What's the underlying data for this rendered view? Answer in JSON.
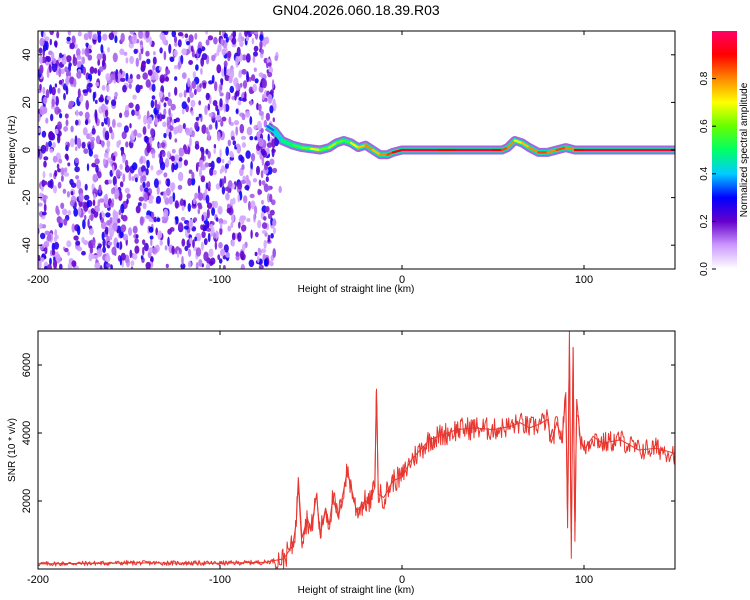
{
  "title": "GN04.2026.060.18.39.R03",
  "chart_data": [
    {
      "type": "heatmap",
      "name": "spectrogram",
      "xlabel": "Height of straight line (km)",
      "ylabel": "Frequency (Hz)",
      "xlim": [
        -200,
        150
      ],
      "ylim": [
        -50,
        50
      ],
      "xticks": [
        -200,
        -100,
        0,
        100
      ],
      "xtick_labels": [
        "-200",
        "-100",
        "0",
        "100"
      ],
      "yticks": [
        -40,
        -20,
        0,
        20,
        40
      ],
      "ytick_labels": [
        "-40",
        "-20",
        "0",
        "20",
        "40"
      ],
      "colorbar": {
        "label": "Normalized spectral amplitude",
        "range": [
          0,
          1
        ],
        "ticks": [
          0.0,
          0.2,
          0.4,
          0.6,
          0.8
        ],
        "tick_labels": [
          "0.0",
          "0.2",
          "0.4",
          "0.6",
          "0.8"
        ],
        "colors": [
          "#ffffff",
          "#cc99ff",
          "#6600cc",
          "#0000ff",
          "#00ccff",
          "#00ff66",
          "#66ff00",
          "#ffff00",
          "#ff8800",
          "#ff0000",
          "#ff0066"
        ]
      },
      "noise_region_x": [
        -200,
        -70
      ],
      "signal_track": {
        "x": [
          -74,
          -70,
          -66,
          -60,
          -55,
          -50,
          -45,
          -40,
          -36,
          -32,
          -28,
          -24,
          -20,
          -16,
          -12,
          -8,
          -5,
          0,
          10,
          20,
          30,
          40,
          50,
          55,
          58,
          62,
          66,
          70,
          75,
          80,
          85,
          90,
          95,
          100,
          120,
          150
        ],
        "freq": [
          10,
          8,
          4,
          2,
          1,
          0.5,
          0,
          1,
          3,
          4,
          3,
          1,
          2,
          0,
          -2,
          -2,
          -1,
          0,
          0,
          0,
          0,
          0,
          0,
          0,
          1,
          4,
          3,
          1,
          -1,
          -1,
          0,
          1,
          0,
          0,
          0,
          0
        ],
        "amplitude": [
          0.35,
          0.4,
          0.5,
          0.55,
          0.6,
          0.7,
          0.6,
          0.65,
          0.6,
          0.55,
          0.7,
          0.75,
          0.8,
          0.75,
          0.8,
          0.85,
          0.9,
          0.95,
          0.95,
          0.9,
          0.95,
          0.95,
          0.9,
          0.85,
          0.8,
          0.7,
          0.75,
          0.8,
          0.85,
          0.8,
          0.85,
          0.8,
          0.9,
          0.95,
          0.95,
          0.95
        ]
      }
    },
    {
      "type": "line",
      "name": "snr",
      "xlabel": "Height of straight line (km)",
      "ylabel": "SNR (10 * v/v)",
      "xlim": [
        -200,
        150
      ],
      "ylim": [
        0,
        7000
      ],
      "xticks": [
        -200,
        -100,
        0,
        100
      ],
      "xtick_labels": [
        "-200",
        "-100",
        "0",
        "100"
      ],
      "yticks": [
        2000,
        4000,
        6000
      ],
      "ytick_labels": [
        "2000",
        "4000",
        "6000"
      ],
      "color": "#e8362f",
      "series": [
        {
          "name": "SNR",
          "x": [
            -200,
            -150,
            -100,
            -75,
            -65,
            -60,
            -58,
            -57,
            -55,
            -52,
            -50,
            -47,
            -45,
            -42,
            -40,
            -38,
            -35,
            -30,
            -25,
            -20,
            -18,
            -15,
            -14,
            -13,
            -10,
            -5,
            0,
            5,
            10,
            15,
            20,
            25,
            30,
            40,
            50,
            60,
            65,
            70,
            75,
            80,
            82,
            85,
            88,
            90,
            91,
            92,
            93,
            94,
            95,
            96,
            98,
            100,
            105,
            110,
            120,
            130,
            140,
            150
          ],
          "y": [
            150,
            180,
            170,
            200,
            300,
            700,
            1400,
            2700,
            900,
            1500,
            1100,
            2200,
            1000,
            1800,
            1300,
            2100,
            1500,
            2900,
            1700,
            2000,
            1900,
            2400,
            5300,
            2200,
            2100,
            2600,
            2700,
            3200,
            3500,
            3800,
            3900,
            4000,
            4100,
            4150,
            4100,
            4200,
            4300,
            4150,
            4250,
            4400,
            3700,
            4300,
            3800,
            5200,
            1200,
            7000,
            300,
            6500,
            800,
            5000,
            3800,
            3500,
            3900,
            3700,
            3800,
            3500,
            3550,
            3400
          ]
        }
      ]
    }
  ]
}
